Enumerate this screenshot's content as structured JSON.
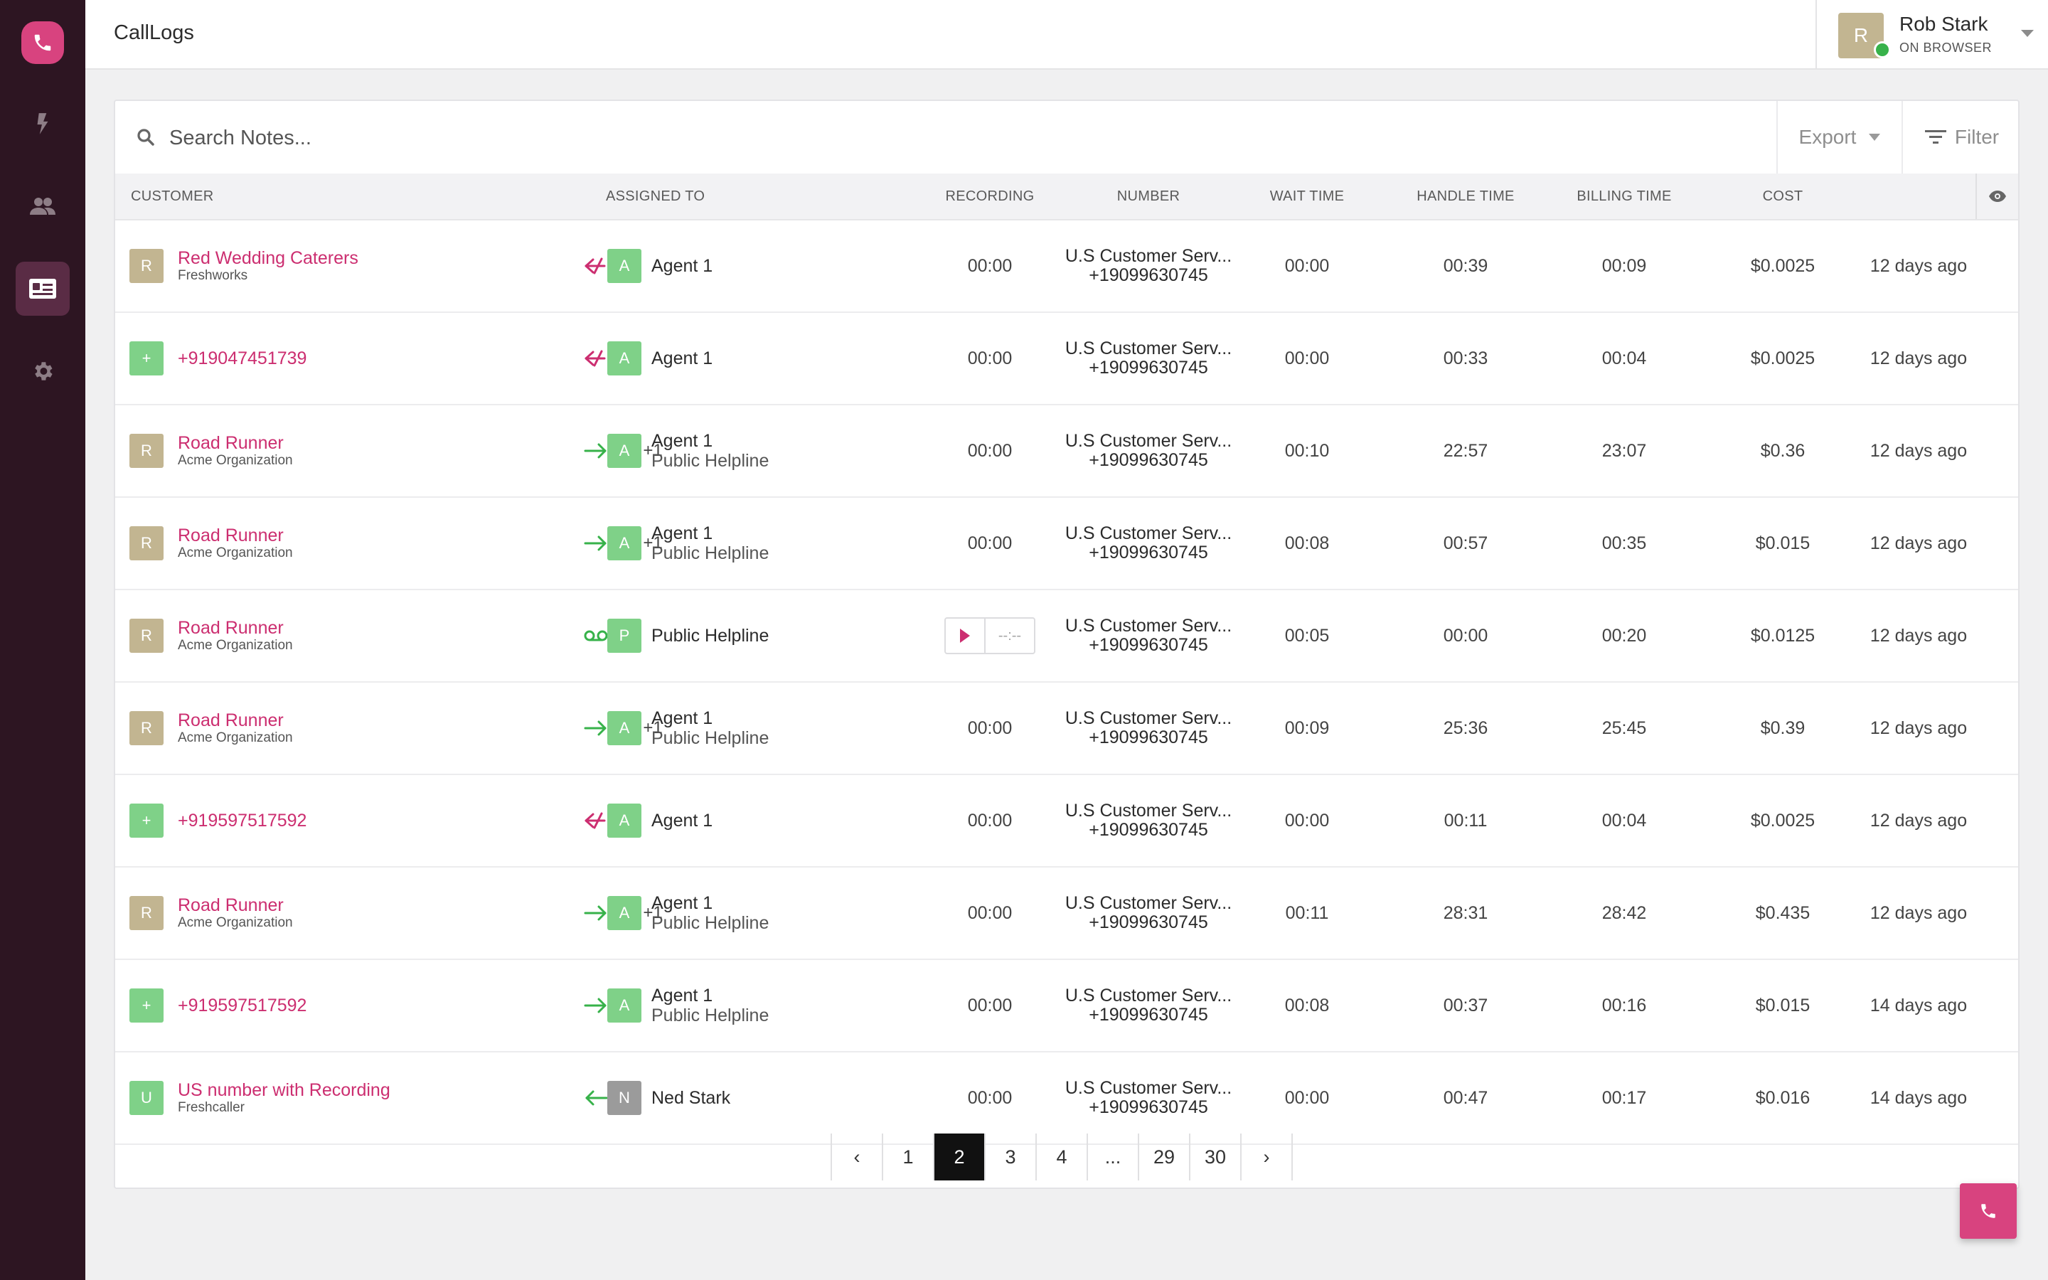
{
  "app": {
    "title": "CallLogs"
  },
  "sidebar": {
    "items": [
      {
        "name": "phone-logo-icon"
      },
      {
        "name": "flash-icon"
      },
      {
        "name": "contacts-icon"
      },
      {
        "name": "call-logs-icon",
        "active": true
      },
      {
        "name": "settings-icon"
      }
    ]
  },
  "user": {
    "initial": "R",
    "name": "Rob Stark",
    "status": "ON BROWSER"
  },
  "toolbar": {
    "search_placeholder": "Search Notes...",
    "export_label": "Export",
    "filter_label": "Filter"
  },
  "table": {
    "headers": {
      "customer": "CUSTOMER",
      "assigned_to": "ASSIGNED TO",
      "recording": "RECORDING",
      "number": "NUMBER",
      "wait_time": "WAIT TIME",
      "handle_time": "HANDLE TIME",
      "billing_time": "BILLING TIME",
      "cost": "COST"
    },
    "rows": [
      {
        "avatar": "R",
        "avatar_color": "tan",
        "customer": "Red Wedding Caterers",
        "org": "Freshworks",
        "direction": "missed",
        "extra": "",
        "agent_avatar": "A",
        "agent_color": "green",
        "agent": "Agent 1",
        "agent_sub": "",
        "recording": "00:00",
        "number_name": "U.S Customer Serv...",
        "number": "+19099630745",
        "wait": "00:00",
        "handle": "00:39",
        "billing": "00:09",
        "cost": "$0.0025",
        "when": "12 days ago"
      },
      {
        "avatar": "+",
        "avatar_color": "green",
        "customer": "+919047451739",
        "org": "",
        "direction": "missed",
        "extra": "",
        "agent_avatar": "A",
        "agent_color": "green",
        "agent": "Agent 1",
        "agent_sub": "",
        "recording": "00:00",
        "number_name": "U.S Customer Serv...",
        "number": "+19099630745",
        "wait": "00:00",
        "handle": "00:33",
        "billing": "00:04",
        "cost": "$0.0025",
        "when": "12 days ago"
      },
      {
        "avatar": "R",
        "avatar_color": "tan",
        "customer": "Road Runner",
        "org": "Acme Organization",
        "direction": "outgoing",
        "extra": "+1",
        "agent_avatar": "A",
        "agent_color": "green",
        "agent": "Agent 1",
        "agent_sub": "Public Helpline",
        "recording": "00:00",
        "number_name": "U.S Customer Serv...",
        "number": "+19099630745",
        "wait": "00:10",
        "handle": "22:57",
        "billing": "23:07",
        "cost": "$0.36",
        "when": "12 days ago"
      },
      {
        "avatar": "R",
        "avatar_color": "tan",
        "customer": "Road Runner",
        "org": "Acme Organization",
        "direction": "outgoing",
        "extra": "+1",
        "agent_avatar": "A",
        "agent_color": "green",
        "agent": "Agent 1",
        "agent_sub": "Public Helpline",
        "recording": "00:00",
        "number_name": "U.S Customer Serv...",
        "number": "+19099630745",
        "wait": "00:08",
        "handle": "00:57",
        "billing": "00:35",
        "cost": "$0.015",
        "when": "12 days ago"
      },
      {
        "avatar": "R",
        "avatar_color": "tan",
        "customer": "Road Runner",
        "org": "Acme Organization",
        "direction": "voicemail",
        "extra": "",
        "agent_avatar": "P",
        "agent_color": "green",
        "agent": "Public Helpline",
        "agent_sub": "",
        "recording": "player",
        "recording_time": "--:--",
        "number_name": "U.S Customer Serv...",
        "number": "+19099630745",
        "wait": "00:05",
        "handle": "00:00",
        "billing": "00:20",
        "cost": "$0.0125",
        "when": "12 days ago"
      },
      {
        "avatar": "R",
        "avatar_color": "tan",
        "customer": "Road Runner",
        "org": "Acme Organization",
        "direction": "outgoing",
        "extra": "+1",
        "agent_avatar": "A",
        "agent_color": "green",
        "agent": "Agent 1",
        "agent_sub": "Public Helpline",
        "recording": "00:00",
        "number_name": "U.S Customer Serv...",
        "number": "+19099630745",
        "wait": "00:09",
        "handle": "25:36",
        "billing": "25:45",
        "cost": "$0.39",
        "when": "12 days ago"
      },
      {
        "avatar": "+",
        "avatar_color": "green",
        "customer": "+919597517592",
        "org": "",
        "direction": "missed",
        "extra": "",
        "agent_avatar": "A",
        "agent_color": "green",
        "agent": "Agent 1",
        "agent_sub": "",
        "recording": "00:00",
        "number_name": "U.S Customer Serv...",
        "number": "+19099630745",
        "wait": "00:00",
        "handle": "00:11",
        "billing": "00:04",
        "cost": "$0.0025",
        "when": "12 days ago"
      },
      {
        "avatar": "R",
        "avatar_color": "tan",
        "customer": "Road Runner",
        "org": "Acme Organization",
        "direction": "outgoing",
        "extra": "+1",
        "agent_avatar": "A",
        "agent_color": "green",
        "agent": "Agent 1",
        "agent_sub": "Public Helpline",
        "recording": "00:00",
        "number_name": "U.S Customer Serv...",
        "number": "+19099630745",
        "wait": "00:11",
        "handle": "28:31",
        "billing": "28:42",
        "cost": "$0.435",
        "when": "12 days ago"
      },
      {
        "avatar": "+",
        "avatar_color": "green",
        "customer": "+919597517592",
        "org": "",
        "direction": "outgoing",
        "extra": "",
        "agent_avatar": "A",
        "agent_color": "green",
        "agent": "Agent 1",
        "agent_sub": "Public Helpline",
        "recording": "00:00",
        "number_name": "U.S Customer Serv...",
        "number": "+19099630745",
        "wait": "00:08",
        "handle": "00:37",
        "billing": "00:16",
        "cost": "$0.015",
        "when": "14 days ago"
      },
      {
        "avatar": "U",
        "avatar_color": "green",
        "customer": "US number with Recording",
        "org": "Freshcaller",
        "direction": "incoming",
        "extra": "",
        "agent_avatar": "N",
        "agent_color": "gray",
        "agent": "Ned Stark",
        "agent_sub": "",
        "recording": "00:00",
        "number_name": "U.S Customer Serv...",
        "number": "+19099630745",
        "wait": "00:00",
        "handle": "00:47",
        "billing": "00:17",
        "cost": "$0.016",
        "when": "14 days ago"
      }
    ]
  },
  "pagination": {
    "prev": "‹",
    "pages": [
      "1",
      "2",
      "3",
      "4",
      "...",
      "29",
      "30"
    ],
    "current": "2",
    "next": "›"
  },
  "colors": {
    "brand": "#d8437f",
    "sidebar": "#2d1522",
    "link": "#cc2e70",
    "green": "#37b24a"
  }
}
